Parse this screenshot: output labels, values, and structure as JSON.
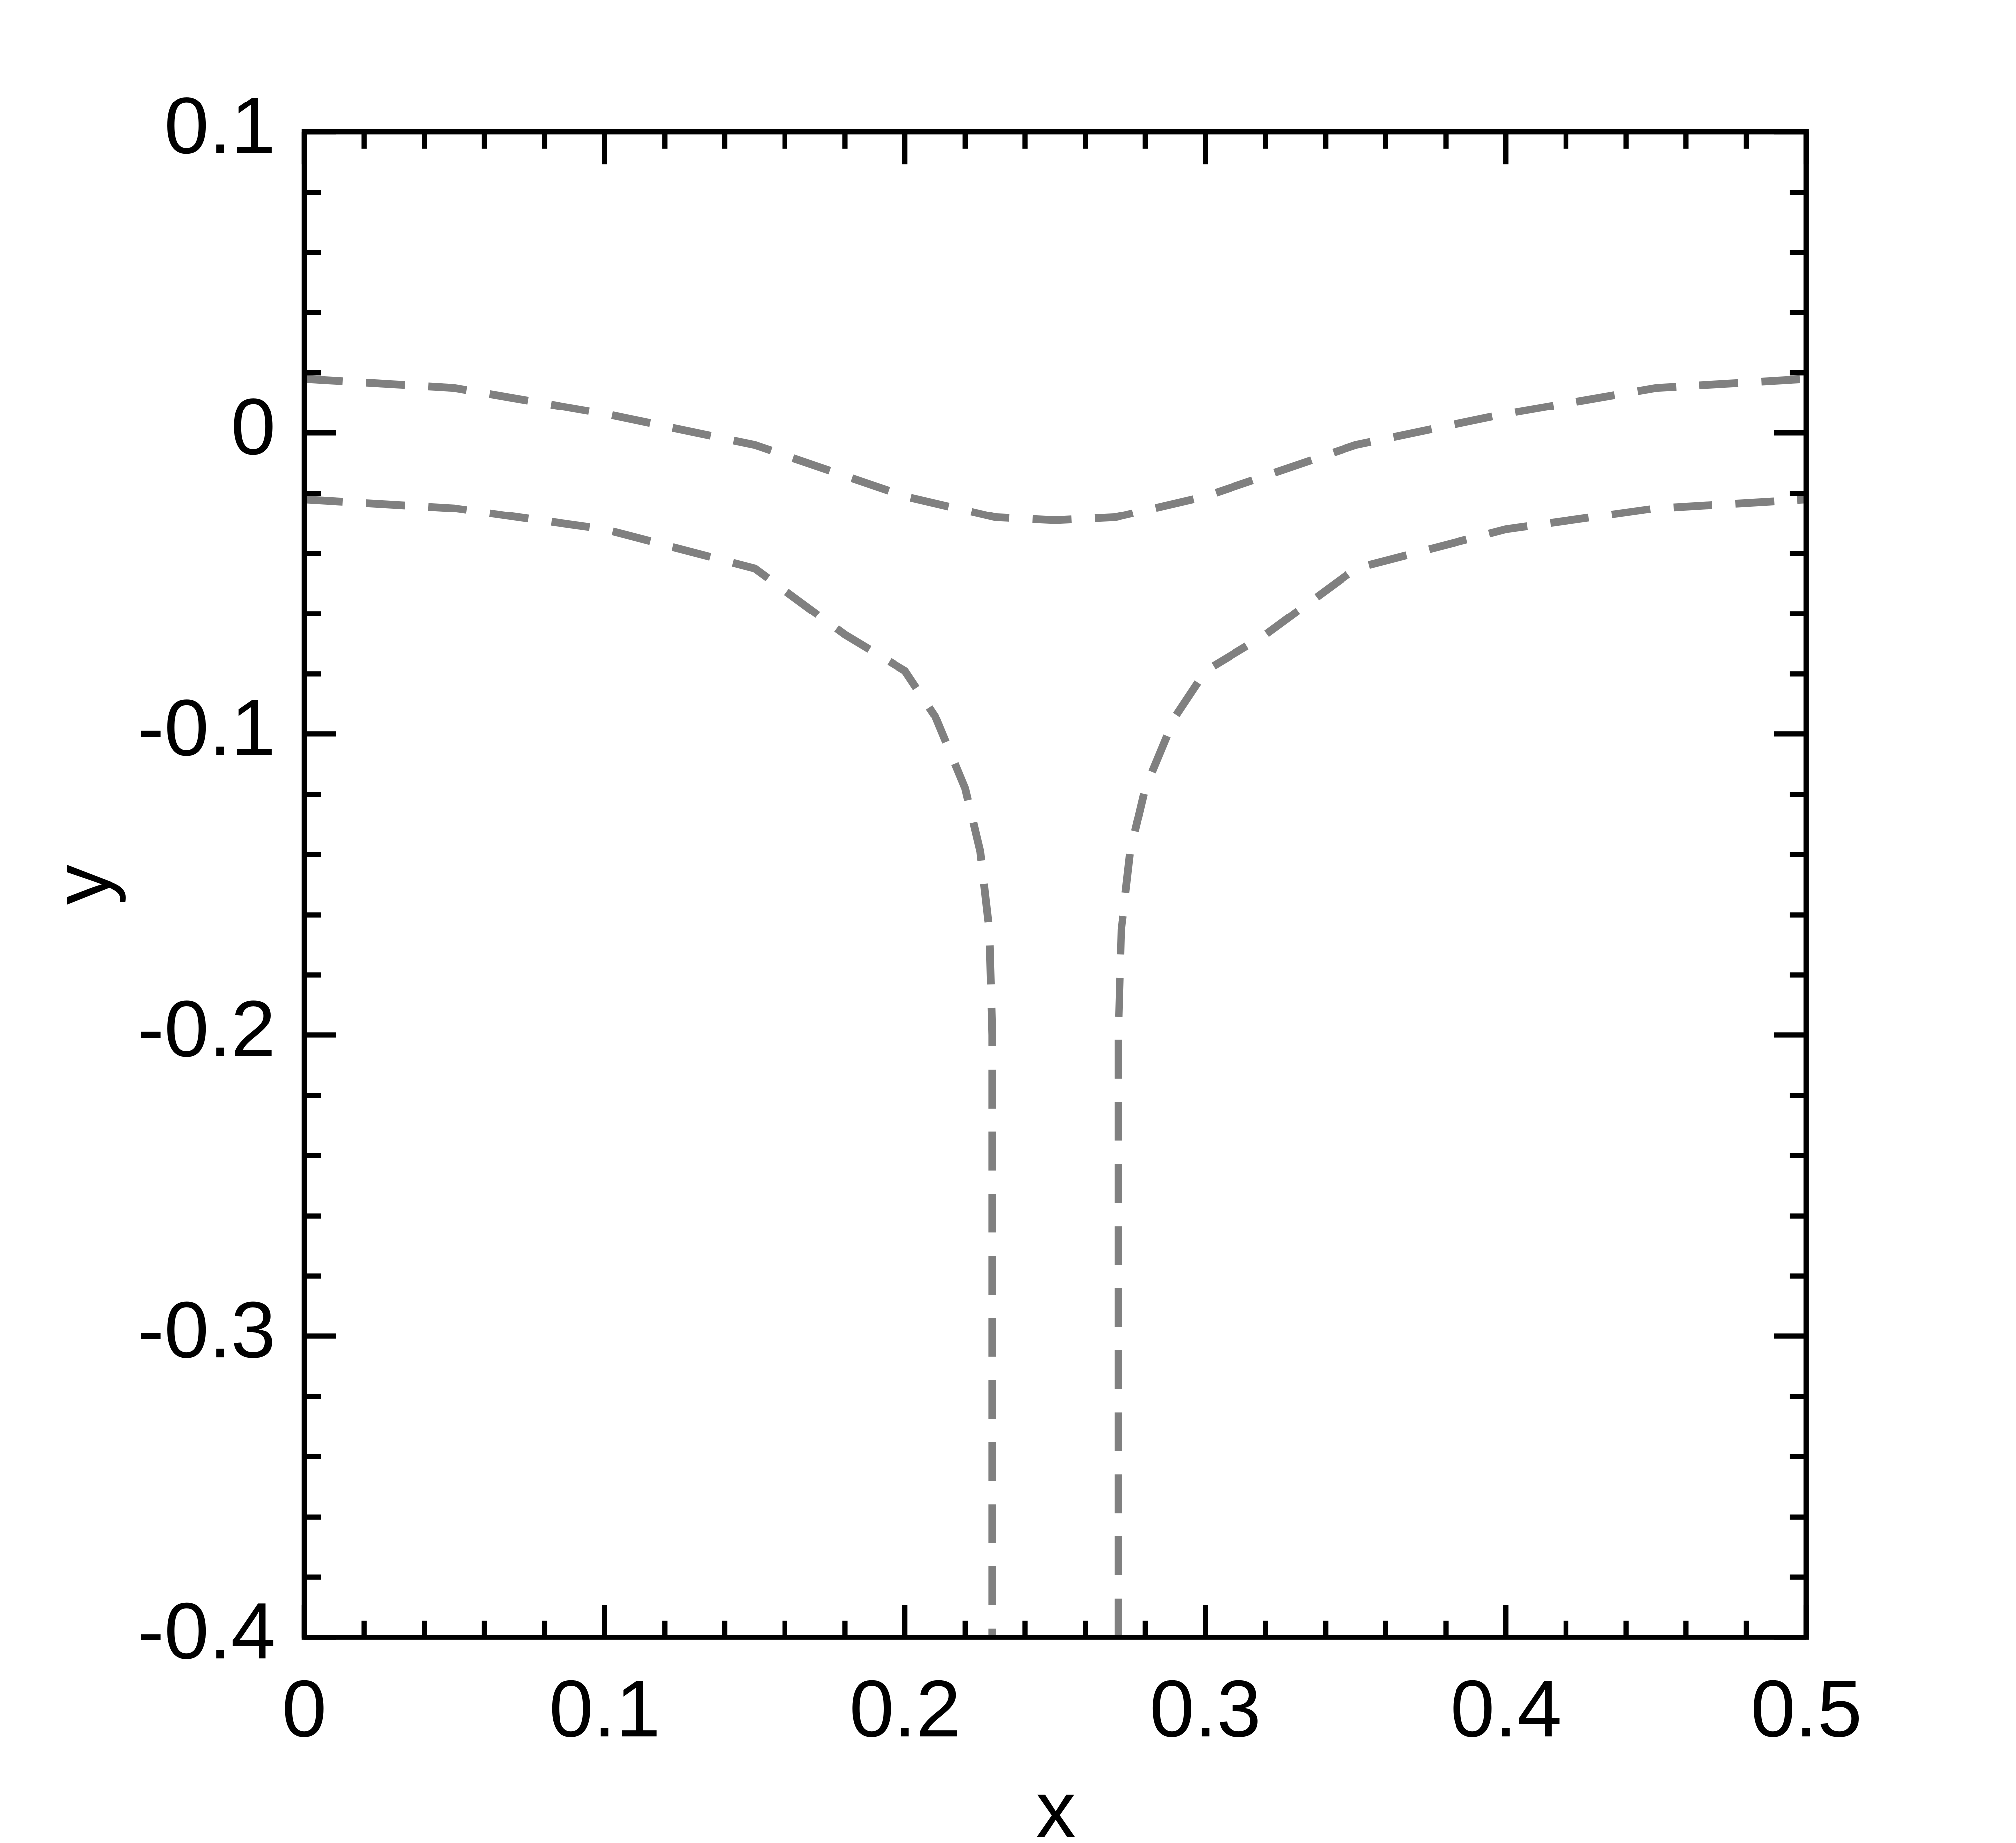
{
  "chart_data": {
    "type": "line",
    "x_label": "x",
    "y_label": "y",
    "xlim": [
      0,
      0.5
    ],
    "ylim": [
      -0.4,
      0.1
    ],
    "xticks": [
      0,
      0.1,
      0.2,
      0.3,
      0.4,
      0.5
    ],
    "yticks": [
      -0.4,
      -0.3,
      -0.2,
      -0.1,
      0,
      0.1
    ],
    "xminorticks": [
      0.02,
      0.04,
      0.06,
      0.08,
      0.12,
      0.14,
      0.16,
      0.18,
      0.22,
      0.24,
      0.26,
      0.28,
      0.32,
      0.34,
      0.36,
      0.38,
      0.42,
      0.44,
      0.46,
      0.48
    ],
    "yminorticks": [
      -0.38,
      -0.36,
      -0.34,
      -0.32,
      -0.28,
      -0.26,
      -0.24,
      -0.22,
      -0.18,
      -0.16,
      -0.14,
      -0.12,
      -0.08,
      -0.06,
      -0.04,
      -0.02,
      0.02,
      0.04,
      0.06,
      0.08
    ],
    "line_style": "dashed",
    "series": [
      {
        "color": "#808080",
        "x": [
          0,
          0.05,
          0.1,
          0.15,
          0.2,
          0.23,
          0.25,
          0.27,
          0.3,
          0.35,
          0.4,
          0.45,
          0.5
        ],
        "values": [
          0.018,
          0.015,
          0.0064,
          -0.004,
          -0.021,
          -0.028,
          -0.029,
          -0.028,
          -0.021,
          -0.004,
          0.0064,
          0.015,
          0.018
        ]
      },
      {
        "color": "#808080",
        "x": [
          0,
          0.05,
          0.1,
          0.15,
          0.18,
          0.2,
          0.21,
          0.22,
          0.225,
          0.228,
          0.229,
          0.229
        ],
        "values": [
          -0.022,
          -0.025,
          -0.032,
          -0.045,
          -0.067,
          -0.079,
          -0.094,
          -0.118,
          -0.139,
          -0.165,
          -0.2,
          -0.4
        ]
      },
      {
        "color": "#808080",
        "x": [
          0.271,
          0.271,
          0.272,
          0.275,
          0.28,
          0.29,
          0.3,
          0.32,
          0.35,
          0.4,
          0.45,
          0.5
        ],
        "values": [
          -0.4,
          -0.2,
          -0.165,
          -0.139,
          -0.118,
          -0.094,
          -0.079,
          -0.067,
          -0.045,
          -0.032,
          -0.025,
          -0.022
        ]
      }
    ]
  }
}
